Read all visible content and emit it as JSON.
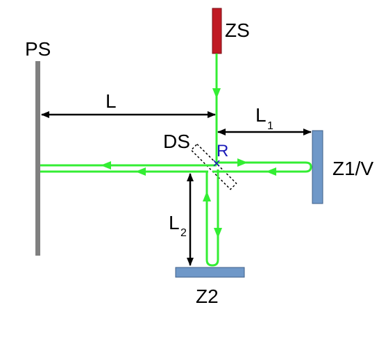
{
  "labels": {
    "ps": "PS",
    "zs": "ZS",
    "z1v": "Z1/V",
    "z2": "Z2",
    "ds": "DS",
    "r": "R",
    "l": "L",
    "l1_main": "L",
    "l1_sub": "1",
    "l2_main": "L",
    "l2_sub": "2"
  },
  "colors": {
    "beam": "#33ee33",
    "source": "#c01a24",
    "mirror": "#6f98c8",
    "mirror_edge": "#3f5f88",
    "screen": "#808080",
    "point": "#1a1ab8",
    "arrow": "#000000"
  }
}
